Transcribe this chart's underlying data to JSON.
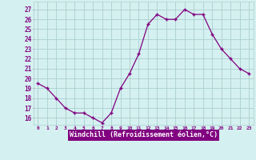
{
  "x": [
    0,
    1,
    2,
    3,
    4,
    5,
    6,
    7,
    8,
    9,
    10,
    11,
    12,
    13,
    14,
    15,
    16,
    17,
    18,
    19,
    20,
    21,
    22,
    23
  ],
  "y": [
    19.5,
    19.0,
    18.0,
    17.0,
    16.5,
    16.5,
    16.0,
    15.5,
    16.5,
    19.0,
    20.5,
    22.5,
    25.5,
    26.5,
    26.0,
    26.0,
    27.0,
    26.5,
    26.5,
    24.5,
    23.0,
    22.0,
    21.0,
    20.5
  ],
  "line_color": "#800080",
  "marker": "+",
  "bg_color": "#d5f0f0",
  "grid_color": "#aacfcf",
  "xlabel": "Windchill (Refroidissement éolien,°C)",
  "ylabel_ticks": [
    16,
    17,
    18,
    19,
    20,
    21,
    22,
    23,
    24,
    25,
    26,
    27
  ],
  "ylim": [
    15.3,
    27.8
  ],
  "xlim": [
    -0.5,
    23.5
  ],
  "tick_color": "#800080",
  "xlabel_bg": "#800080",
  "xlabel_fg": "#ffffff"
}
